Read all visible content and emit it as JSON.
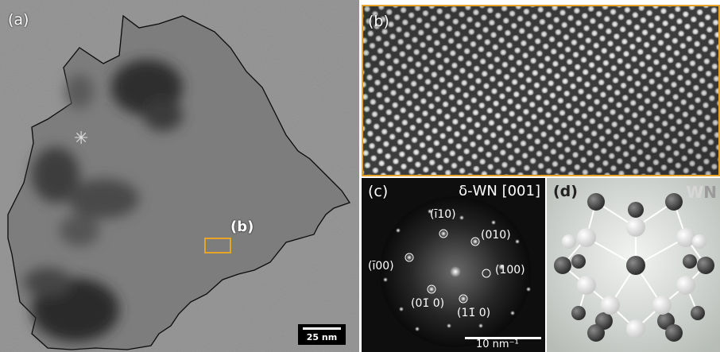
{
  "panels": {
    "a": {
      "label": "(a)",
      "marker_label": "(b)",
      "scale_bar": "25 nm",
      "asterisk": "✳",
      "box_color": "#e8a426"
    },
    "b": {
      "label": "(b)",
      "border_color": "#e8a426"
    },
    "c": {
      "label": "(c)",
      "title": "δ-WN [001]",
      "scale_bar": "10 nm⁻¹",
      "indices": [
        "(ī10)",
        "(010)",
        "(ī00)",
        "(100)",
        "(01̄ 0)",
        "(11̄ 0)"
      ]
    },
    "d": {
      "label": "(d)",
      "legend_w": "W",
      "legend_n": "N",
      "w_color": "#d6d6d6",
      "n_color": "#9a9a9a"
    }
  }
}
